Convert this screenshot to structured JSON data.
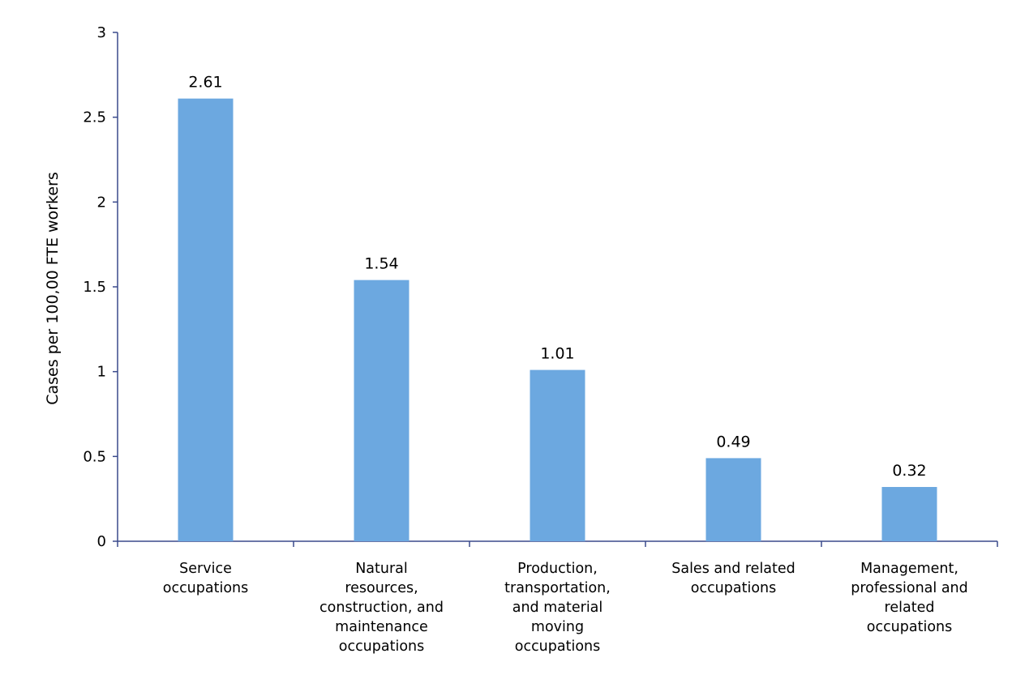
{
  "chart_data": {
    "type": "bar",
    "title": "",
    "xlabel": "",
    "ylabel": "Cases per 100,00 FTE workers",
    "ylim": [
      0,
      3
    ],
    "yticks": [
      0,
      0.5,
      1,
      1.5,
      2,
      2.5,
      3
    ],
    "ytick_labels": [
      "0",
      "0.5",
      "1",
      "1.5",
      "2",
      "2.5",
      "3"
    ],
    "grid": false,
    "legend": "none",
    "bar_color": "#6ca8e0",
    "axis_color": "#3a4a8c",
    "categories": [
      "Service occupations",
      "Natural resources, construction, and maintenance occupations",
      "Production, transportation, and material moving occupations",
      "Sales and related occupations",
      "Management, professional and related occupations"
    ],
    "category_lines": [
      [
        "Service",
        "occupations"
      ],
      [
        "Natural",
        "resources,",
        "construction, and",
        "maintenance",
        "occupations"
      ],
      [
        "Production,",
        "transportation,",
        "and material",
        "moving",
        "occupations"
      ],
      [
        "Sales and related",
        "occupations"
      ],
      [
        "Management,",
        "professional and",
        "related",
        "occupations"
      ]
    ],
    "values": [
      2.61,
      1.54,
      1.01,
      0.49,
      0.32
    ],
    "value_labels": [
      "2.61",
      "1.54",
      "1.01",
      "0.49",
      "0.32"
    ]
  }
}
